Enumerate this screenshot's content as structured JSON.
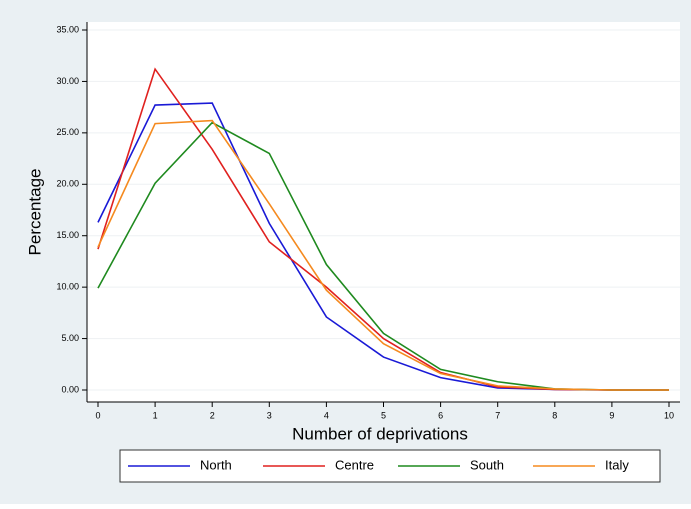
{
  "chart_data": {
    "type": "line",
    "x_label": "Number of deprivations",
    "y_label": "Percentage",
    "x": [
      0,
      1,
      2,
      3,
      4,
      5,
      6,
      7,
      8,
      9,
      10
    ],
    "series": [
      {
        "name": "North",
        "color": "#1a1ad6",
        "values": [
          16.3,
          27.7,
          27.9,
          16.2,
          7.1,
          3.2,
          1.2,
          0.2,
          0.05,
          0.0,
          0.0
        ]
      },
      {
        "name": "Centre",
        "color": "#e0211f",
        "values": [
          13.7,
          31.2,
          23.4,
          14.4,
          10.0,
          5.0,
          1.7,
          0.3,
          0.05,
          0.0,
          0.0
        ]
      },
      {
        "name": "South",
        "color": "#1f8a1f",
        "values": [
          9.9,
          20.1,
          26.0,
          23.0,
          12.2,
          5.5,
          2.0,
          0.8,
          0.1,
          0.0,
          0.0
        ]
      },
      {
        "name": "Italy",
        "color": "#f58a1f",
        "values": [
          13.9,
          25.9,
          26.2,
          18.1,
          9.7,
          4.5,
          1.6,
          0.4,
          0.1,
          0.0,
          0.0
        ]
      }
    ],
    "xlim": [
      0,
      10
    ],
    "xticks": [
      0,
      1,
      2,
      3,
      4,
      5,
      6,
      7,
      8,
      9,
      10
    ],
    "ylim": [
      0,
      35
    ],
    "yticks": [
      {
        "value": 0,
        "label": "0.00"
      },
      {
        "value": 5,
        "label": "5.00"
      },
      {
        "value": 10,
        "label": "10.00"
      },
      {
        "value": 15,
        "label": "15.00"
      },
      {
        "value": 20,
        "label": "20.00"
      },
      {
        "value": 25,
        "label": "25.00"
      },
      {
        "value": 30,
        "label": "30.00"
      },
      {
        "value": 35,
        "label": "35.00"
      }
    ],
    "grid": true,
    "legend": "bottom"
  }
}
